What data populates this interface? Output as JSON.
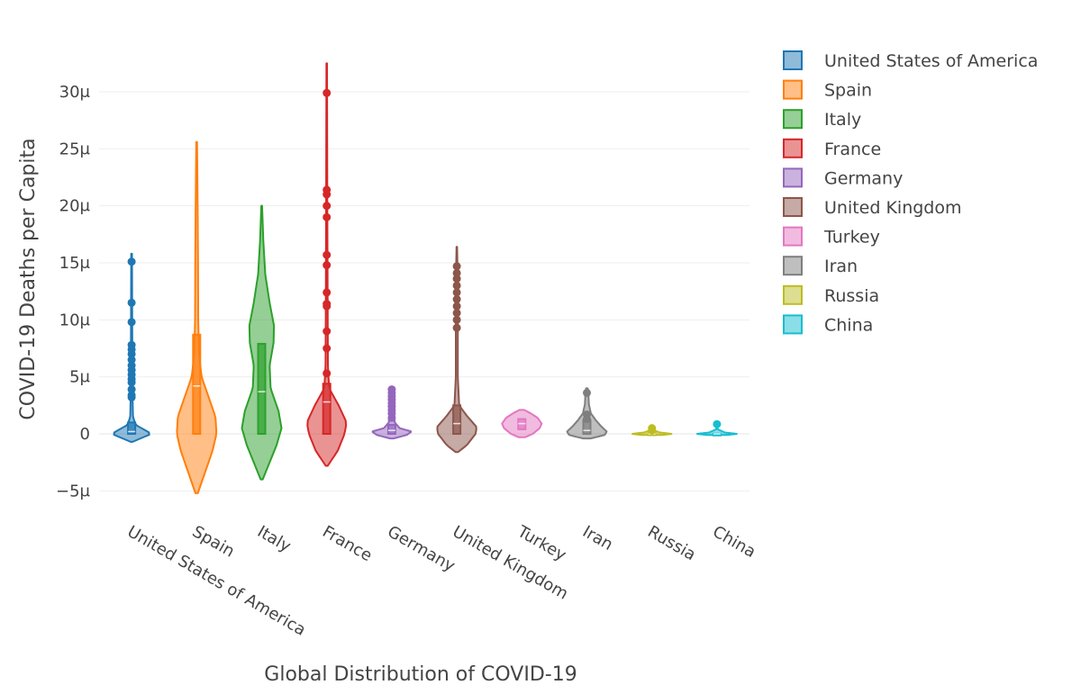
{
  "chart_data": {
    "type": "violin",
    "title": "",
    "xlabel": "Global Distribution of COVID-19",
    "ylabel": "COVID-19 Deaths per Capita",
    "ylim": [
      -6.5,
      33
    ],
    "ytick_values": [
      -5,
      0,
      5,
      10,
      15,
      20,
      25,
      30
    ],
    "ytick_labels": [
      "−5μ",
      "0",
      "5μ",
      "10μ",
      "15μ",
      "20μ",
      "25μ",
      "30μ"
    ],
    "unit": "μ (millionths)",
    "categories": [
      "United States of America",
      "Spain",
      "Italy",
      "France",
      "Germany",
      "United Kingdom",
      "Turkey",
      "Iran",
      "Russia",
      "China"
    ],
    "legend": {
      "position": "right",
      "entries": [
        "United States of America",
        "Spain",
        "Italy",
        "France",
        "Germany",
        "United Kingdom",
        "Turkey",
        "Iran",
        "Russia",
        "China"
      ]
    },
    "series": [
      {
        "name": "United States of America",
        "color": "#1f77b4",
        "range": [
          -0.7,
          15.8
        ],
        "q1": 0,
        "median": 0.2,
        "q3": 1.0,
        "profile": [
          [
            -0.7,
            0.05
          ],
          [
            -0.4,
            0.45
          ],
          [
            0,
            1.0
          ],
          [
            0.4,
            0.6
          ],
          [
            0.8,
            0.2
          ],
          [
            1.5,
            0.07
          ],
          [
            3,
            0.05
          ],
          [
            6,
            0.04
          ],
          [
            10,
            0.03
          ],
          [
            15.8,
            0.02
          ]
        ],
        "points": [
          15.1,
          11.5,
          9.8,
          7.8,
          7.4,
          7.0,
          6.5,
          6.0,
          5.6,
          5.2,
          4.8,
          4.5,
          3.9,
          3.4,
          3.2
        ]
      },
      {
        "name": "Spain",
        "color": "#ff7f0e",
        "range": [
          -5.2,
          25.6
        ],
        "q1": 0,
        "median": 4.2,
        "q3": 8.7,
        "profile": [
          [
            -5.2,
            0.06
          ],
          [
            -3.5,
            0.4
          ],
          [
            -1.5,
            0.8
          ],
          [
            0,
            1.0
          ],
          [
            1.5,
            0.95
          ],
          [
            3,
            0.65
          ],
          [
            5,
            0.25
          ],
          [
            7,
            0.12
          ],
          [
            10,
            0.08
          ],
          [
            15,
            0.07
          ],
          [
            20,
            0.05
          ],
          [
            25.6,
            0.02
          ]
        ],
        "points": []
      },
      {
        "name": "Italy",
        "color": "#2ca02c",
        "range": [
          -4.0,
          20.0
        ],
        "q1": 0,
        "median": 3.7,
        "q3": 7.9,
        "profile": [
          [
            -4,
            0.05
          ],
          [
            -2.5,
            0.4
          ],
          [
            -1,
            0.75
          ],
          [
            0.5,
            1.0
          ],
          [
            2,
            0.85
          ],
          [
            4,
            0.45
          ],
          [
            6,
            0.4
          ],
          [
            8,
            0.6
          ],
          [
            9.5,
            0.62
          ],
          [
            11.5,
            0.4
          ],
          [
            14,
            0.18
          ],
          [
            17,
            0.08
          ],
          [
            20,
            0.02
          ]
        ],
        "points": []
      },
      {
        "name": "France",
        "color": "#d62728",
        "range": [
          -2.8,
          32.5
        ],
        "q1": 0,
        "median": 2.8,
        "q3": 4.4,
        "profile": [
          [
            -2.8,
            0.05
          ],
          [
            -1.5,
            0.55
          ],
          [
            0,
            0.9
          ],
          [
            1,
            1.0
          ],
          [
            2.5,
            0.6
          ],
          [
            4,
            0.12
          ],
          [
            6,
            0.06
          ],
          [
            10,
            0.05
          ],
          [
            20,
            0.03
          ],
          [
            32.5,
            0.015
          ]
        ],
        "points": [
          29.9,
          21.4,
          21.0,
          20.0,
          19.0,
          15.7,
          14.8,
          12.4,
          11.4,
          11.2,
          9.0,
          7.5,
          5.3
        ]
      },
      {
        "name": "Germany",
        "color": "#9467bd",
        "range": [
          -0.4,
          4.1
        ],
        "q1": 0,
        "median": 0.3,
        "q3": 0.8,
        "profile": [
          [
            -0.4,
            0.1
          ],
          [
            -0.1,
            0.75
          ],
          [
            0.2,
            1.0
          ],
          [
            0.5,
            0.4
          ],
          [
            1,
            0.15
          ],
          [
            2,
            0.12
          ],
          [
            3,
            0.1
          ],
          [
            4.1,
            0.05
          ]
        ],
        "points": [
          3.9,
          3.6,
          3.3,
          3.0,
          2.7,
          2.4,
          2.1,
          1.8,
          1.4
        ]
      },
      {
        "name": "United Kingdom",
        "color": "#8c564b",
        "range": [
          -1.6,
          16.4
        ],
        "q1": 0,
        "median": 0.9,
        "q3": 2.5,
        "profile": [
          [
            -1.6,
            0.06
          ],
          [
            -1,
            0.5
          ],
          [
            0,
            0.95
          ],
          [
            0.6,
            1.0
          ],
          [
            1.6,
            0.5
          ],
          [
            2.5,
            0.12
          ],
          [
            5,
            0.05
          ],
          [
            10,
            0.05
          ],
          [
            14,
            0.04
          ],
          [
            16.4,
            0.015
          ]
        ],
        "points": [
          14.7,
          14.1,
          13.6,
          13.0,
          12.4,
          11.8,
          11.2,
          10.6,
          10.0,
          9.3
        ]
      },
      {
        "name": "Turkey",
        "color": "#e377c2",
        "range": [
          -0.3,
          2.1
        ],
        "q1": 0.4,
        "median": 0.9,
        "q3": 1.3,
        "profile": [
          [
            -0.3,
            0.15
          ],
          [
            0,
            0.55
          ],
          [
            0.5,
            0.9
          ],
          [
            0.9,
            1.0
          ],
          [
            1.4,
            0.8
          ],
          [
            1.8,
            0.45
          ],
          [
            2.1,
            0.12
          ]
        ],
        "points": []
      },
      {
        "name": "Iran",
        "color": "#7f7f7f",
        "range": [
          -0.4,
          4.0
        ],
        "q1": 0,
        "median": 0.3,
        "q3": 1.2,
        "profile": [
          [
            -0.4,
            0.2
          ],
          [
            -0.1,
            0.9
          ],
          [
            0.2,
            1.0
          ],
          [
            0.7,
            0.7
          ],
          [
            1.2,
            0.45
          ],
          [
            1.8,
            0.2
          ],
          [
            2.6,
            0.1
          ],
          [
            3.4,
            0.08
          ],
          [
            4.0,
            0.04
          ]
        ],
        "points": [
          3.6,
          1.7,
          1.3
        ]
      },
      {
        "name": "Russia",
        "color": "#bcbd22",
        "range": [
          -0.1,
          0.5
        ],
        "q1": 0,
        "median": 0,
        "q3": 0.05,
        "profile": [
          [
            -0.12,
            0.4
          ],
          [
            0,
            1.0
          ],
          [
            0.12,
            0.4
          ],
          [
            0.3,
            0.1
          ],
          [
            0.5,
            0.05
          ]
        ],
        "points": [
          0.5,
          0.3
        ]
      },
      {
        "name": "China",
        "color": "#17becf",
        "range": [
          -0.1,
          0.9
        ],
        "q1": 0,
        "median": 0,
        "q3": 0.02,
        "profile": [
          [
            -0.12,
            0.4
          ],
          [
            0,
            1.0
          ],
          [
            0.12,
            0.4
          ],
          [
            0.4,
            0.04
          ],
          [
            0.9,
            0.02
          ]
        ],
        "points": [
          0.85
        ]
      }
    ]
  }
}
